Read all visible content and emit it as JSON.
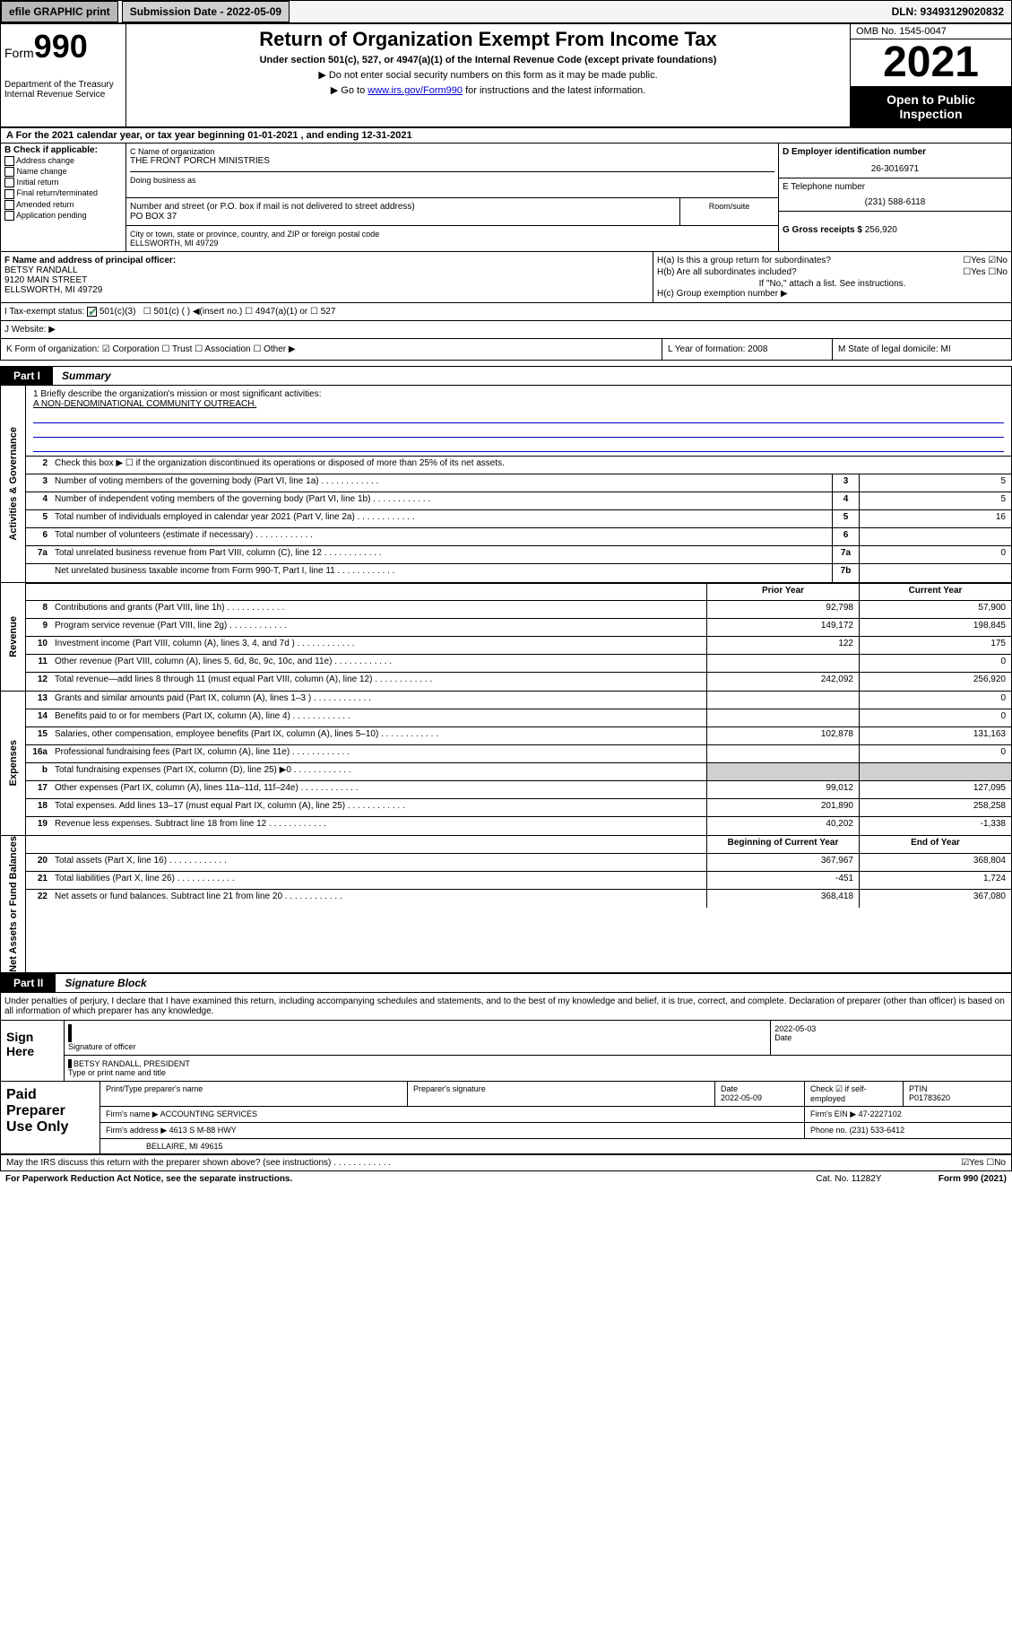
{
  "top": {
    "efile": "efile GRAPHIC print",
    "submission": "Submission Date - 2022-05-09",
    "dln": "DLN: 93493129020832"
  },
  "header": {
    "form_prefix": "Form",
    "form_num": "990",
    "dept": "Department of the Treasury",
    "irs": "Internal Revenue Service",
    "title": "Return of Organization Exempt From Income Tax",
    "sub1": "Under section 501(c), 527, or 4947(a)(1) of the Internal Revenue Code (except private foundations)",
    "sub2": "▶ Do not enter social security numbers on this form as it may be made public.",
    "sub3_pre": "▶ Go to ",
    "sub3_link": "www.irs.gov/Form990",
    "sub3_post": " for instructions and the latest information.",
    "omb": "OMB No. 1545-0047",
    "year": "2021",
    "inspect1": "Open to Public",
    "inspect2": "Inspection"
  },
  "rowA": "A For the 2021 calendar year, or tax year beginning 01-01-2021   , and ending 12-31-2021",
  "colB": {
    "label": "B Check if applicable:",
    "items": [
      "Address change",
      "Name change",
      "Initial return",
      "Final return/terminated",
      "Amended return",
      "Application pending"
    ]
  },
  "colC": {
    "name_lbl": "C Name of organization",
    "name": "THE FRONT PORCH MINISTRIES",
    "dba_lbl": "Doing business as",
    "addr_lbl": "Number and street (or P.O. box if mail is not delivered to street address)",
    "addr": "PO BOX 37",
    "room_lbl": "Room/suite",
    "city_lbl": "City or town, state or province, country, and ZIP or foreign postal code",
    "city": "ELLSWORTH, MI  49729"
  },
  "colD": {
    "ein_lbl": "D Employer identification number",
    "ein": "26-3016971",
    "tel_lbl": "E Telephone number",
    "tel": "(231) 588-6118",
    "gross_lbl": "G Gross receipts $",
    "gross": "256,920"
  },
  "rowF": {
    "f_lbl": "F Name and address of principal officer:",
    "f_name": "BETSY RANDALL",
    "f_addr": "9120 MAIN STREET",
    "f_city": "ELLSWORTH, MI  49729"
  },
  "rowH": {
    "ha": "H(a)  Is this a group return for subordinates?",
    "ha_yn": "☐Yes ☑No",
    "hb": "H(b)  Are all subordinates included?",
    "hb_yn": "☐Yes ☐No",
    "hb_note": "If \"No,\" attach a list. See instructions.",
    "hc": "H(c)  Group exemption number ▶"
  },
  "rowI": "I   Tax-exempt status:",
  "rowI_501c3": "501(c)(3)",
  "rowI_rest": "☐  501(c) (  ) ◀(insert no.)    ☐ 4947(a)(1) or  ☐ 527",
  "rowJ": "J   Website: ▶",
  "rowK": "K Form of organization:  ☑ Corporation  ☐ Trust  ☐ Association  ☐ Other ▶",
  "rowL": "L Year of formation: 2008",
  "rowM": "M State of legal domicile: MI",
  "part1": {
    "tab": "Part I",
    "title": "Summary"
  },
  "mission_lbl": "1   Briefly describe the organization's mission or most significant activities:",
  "mission": "A NON-DENOMINATIONAL COMMUNITY OUTREACH.",
  "gov": {
    "label": "Activities & Governance",
    "r2": "Check this box ▶ ☐  if the organization discontinued its operations or disposed of more than 25% of its net assets.",
    "rows": [
      {
        "n": "3",
        "d": "Number of voting members of the governing body (Part VI, line 1a)",
        "b": "3",
        "v": "5"
      },
      {
        "n": "4",
        "d": "Number of independent voting members of the governing body (Part VI, line 1b)",
        "b": "4",
        "v": "5"
      },
      {
        "n": "5",
        "d": "Total number of individuals employed in calendar year 2021 (Part V, line 2a)",
        "b": "5",
        "v": "16"
      },
      {
        "n": "6",
        "d": "Total number of volunteers (estimate if necessary)",
        "b": "6",
        "v": ""
      },
      {
        "n": "7a",
        "d": "Total unrelated business revenue from Part VIII, column (C), line 12",
        "b": "7a",
        "v": "0"
      },
      {
        "n": "",
        "d": "Net unrelated business taxable income from Form 990-T, Part I, line 11",
        "b": "7b",
        "v": ""
      }
    ]
  },
  "rev": {
    "label": "Revenue",
    "hdr_prior": "Prior Year",
    "hdr_curr": "Current Year",
    "rows": [
      {
        "n": "8",
        "d": "Contributions and grants (Part VIII, line 1h)",
        "p": "92,798",
        "c": "57,900"
      },
      {
        "n": "9",
        "d": "Program service revenue (Part VIII, line 2g)",
        "p": "149,172",
        "c": "198,845"
      },
      {
        "n": "10",
        "d": "Investment income (Part VIII, column (A), lines 3, 4, and 7d )",
        "p": "122",
        "c": "175"
      },
      {
        "n": "11",
        "d": "Other revenue (Part VIII, column (A), lines 5, 6d, 8c, 9c, 10c, and 11e)",
        "p": "",
        "c": "0"
      },
      {
        "n": "12",
        "d": "Total revenue—add lines 8 through 11 (must equal Part VIII, column (A), line 12)",
        "p": "242,092",
        "c": "256,920"
      }
    ]
  },
  "exp": {
    "label": "Expenses",
    "rows": [
      {
        "n": "13",
        "d": "Grants and similar amounts paid (Part IX, column (A), lines 1–3 )",
        "p": "",
        "c": "0"
      },
      {
        "n": "14",
        "d": "Benefits paid to or for members (Part IX, column (A), line 4)",
        "p": "",
        "c": "0"
      },
      {
        "n": "15",
        "d": "Salaries, other compensation, employee benefits (Part IX, column (A), lines 5–10)",
        "p": "102,878",
        "c": "131,163"
      },
      {
        "n": "16a",
        "d": "Professional fundraising fees (Part IX, column (A), line 11e)",
        "p": "",
        "c": "0"
      },
      {
        "n": "b",
        "d": "Total fundraising expenses (Part IX, column (D), line 25) ▶0",
        "p": "shade",
        "c": "shade"
      },
      {
        "n": "17",
        "d": "Other expenses (Part IX, column (A), lines 11a–11d, 11f–24e)",
        "p": "99,012",
        "c": "127,095"
      },
      {
        "n": "18",
        "d": "Total expenses. Add lines 13–17 (must equal Part IX, column (A), line 25)",
        "p": "201,890",
        "c": "258,258"
      },
      {
        "n": "19",
        "d": "Revenue less expenses. Subtract line 18 from line 12",
        "p": "40,202",
        "c": "-1,338"
      }
    ]
  },
  "net": {
    "label": "Net Assets or Fund Balances",
    "hdr_beg": "Beginning of Current Year",
    "hdr_end": "End of Year",
    "rows": [
      {
        "n": "20",
        "d": "Total assets (Part X, line 16)",
        "p": "367,967",
        "c": "368,804"
      },
      {
        "n": "21",
        "d": "Total liabilities (Part X, line 26)",
        "p": "-451",
        "c": "1,724"
      },
      {
        "n": "22",
        "d": "Net assets or fund balances. Subtract line 21 from line 20",
        "p": "368,418",
        "c": "367,080"
      }
    ]
  },
  "part2": {
    "tab": "Part II",
    "title": "Signature Block"
  },
  "sig_text": "Under penalties of perjury, I declare that I have examined this return, including accompanying schedules and statements, and to the best of my knowledge and belief, it is true, correct, and complete. Declaration of preparer (other than officer) is based on all information of which preparer has any knowledge.",
  "sign": {
    "lbl": "Sign Here",
    "sig_lbl": "Signature of officer",
    "date": "2022-05-03",
    "date_lbl": "Date",
    "name": "BETSY RANDALL, PRESIDENT",
    "name_lbl": "Type or print name and title"
  },
  "prep": {
    "lbl": "Paid Preparer Use Only",
    "h1": "Print/Type preparer's name",
    "h2": "Preparer's signature",
    "h3": "Date",
    "h3v": "2022-05-09",
    "h4": "Check ☑ if self-employed",
    "h5": "PTIN",
    "h5v": "P01783620",
    "firm_lbl": "Firm's name   ▶",
    "firm": "ACCOUNTING SERVICES",
    "ein_lbl": "Firm's EIN ▶",
    "ein": "47-2227102",
    "addr_lbl": "Firm's address ▶",
    "addr1": "4613 S M-88 HWY",
    "addr2": "BELLAIRE, MI  49615",
    "phone_lbl": "Phone no.",
    "phone": "(231) 533-6412"
  },
  "footer": {
    "q": "May the IRS discuss this return with the preparer shown above? (see instructions)",
    "yn": "☑Yes  ☐No",
    "pra": "For Paperwork Reduction Act Notice, see the separate instructions.",
    "cat": "Cat. No. 11282Y",
    "form": "Form 990 (2021)"
  }
}
